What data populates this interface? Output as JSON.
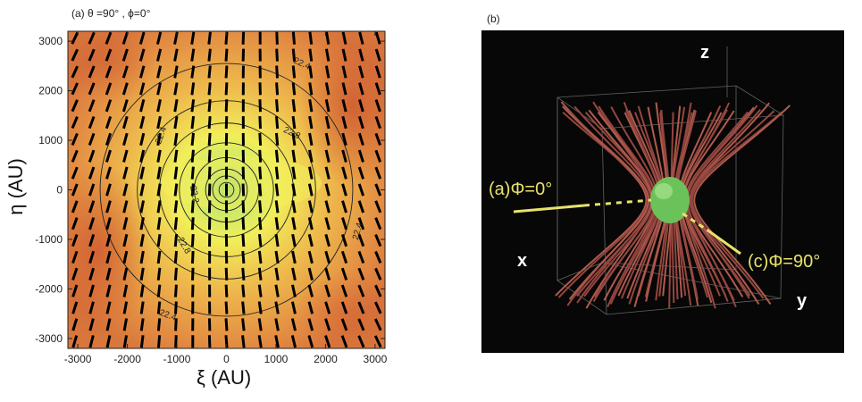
{
  "panel_a": {
    "label": "(a) θ =90° ,  ϕ=0°",
    "xlabel": "ξ (AU)",
    "ylabel": "η (AU)",
    "x_ticks": [
      "-3000",
      "-2000",
      "-1000",
      "0",
      "1000",
      "2000",
      "3000"
    ],
    "y_ticks": [
      "3000",
      "2000",
      "1000",
      "0",
      "-1000",
      "-2000",
      "-3000"
    ],
    "contour_labels": [
      {
        "text": "22.4"
      },
      {
        "text": "22.4"
      },
      {
        "text": "22.8"
      },
      {
        "text": "23.2"
      },
      {
        "text": "22.8"
      },
      {
        "text": "22.4"
      },
      {
        "text": "22.4"
      }
    ]
  },
  "panel_b": {
    "label": "(b)",
    "axis_z": "z",
    "axis_x": "x",
    "axis_y": "y",
    "annotation_a": "(a)Φ=0°",
    "annotation_c": "(c)Φ=90°"
  },
  "chart_data": {
    "type": "heatmap",
    "title": "(a) θ =90° ,  ϕ=0°",
    "xlabel": "ξ (AU)",
    "ylabel": "η (AU)",
    "xlim": [
      -3200,
      3200
    ],
    "ylim": [
      -3200,
      3200
    ],
    "contour_levels": [
      22.4,
      22.8,
      23.2
    ],
    "field": "column density map (color) with overplotted contours and polarization vectors",
    "colors": {
      "low": "#d06a3a",
      "mid": "#e8a848",
      "high": "#eef050",
      "peak": "#9ed27a"
    }
  }
}
